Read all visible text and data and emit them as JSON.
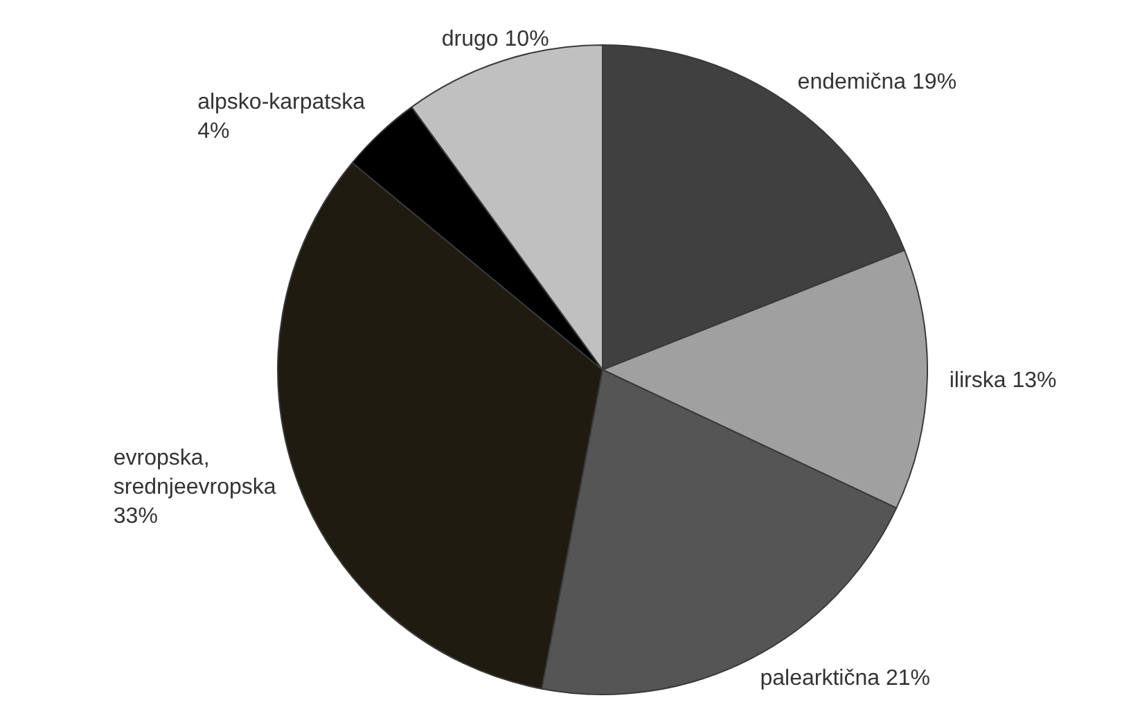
{
  "chart_data": {
    "type": "pie",
    "categories": [
      "endemična",
      "ilirska",
      "palearktična",
      "evropska, srednjeevropska",
      "alpsko-karpatska",
      "drugo"
    ],
    "values": [
      19,
      13,
      21,
      33,
      4,
      10
    ],
    "value_labels": [
      "19%",
      "13%",
      "21%",
      "33%",
      "4%",
      "10%"
    ],
    "colors": [
      "#404040",
      "#a0a0a0",
      "#555555",
      "#1f1b10",
      "#000000",
      "#c0c0c0"
    ],
    "legend": false
  }
}
